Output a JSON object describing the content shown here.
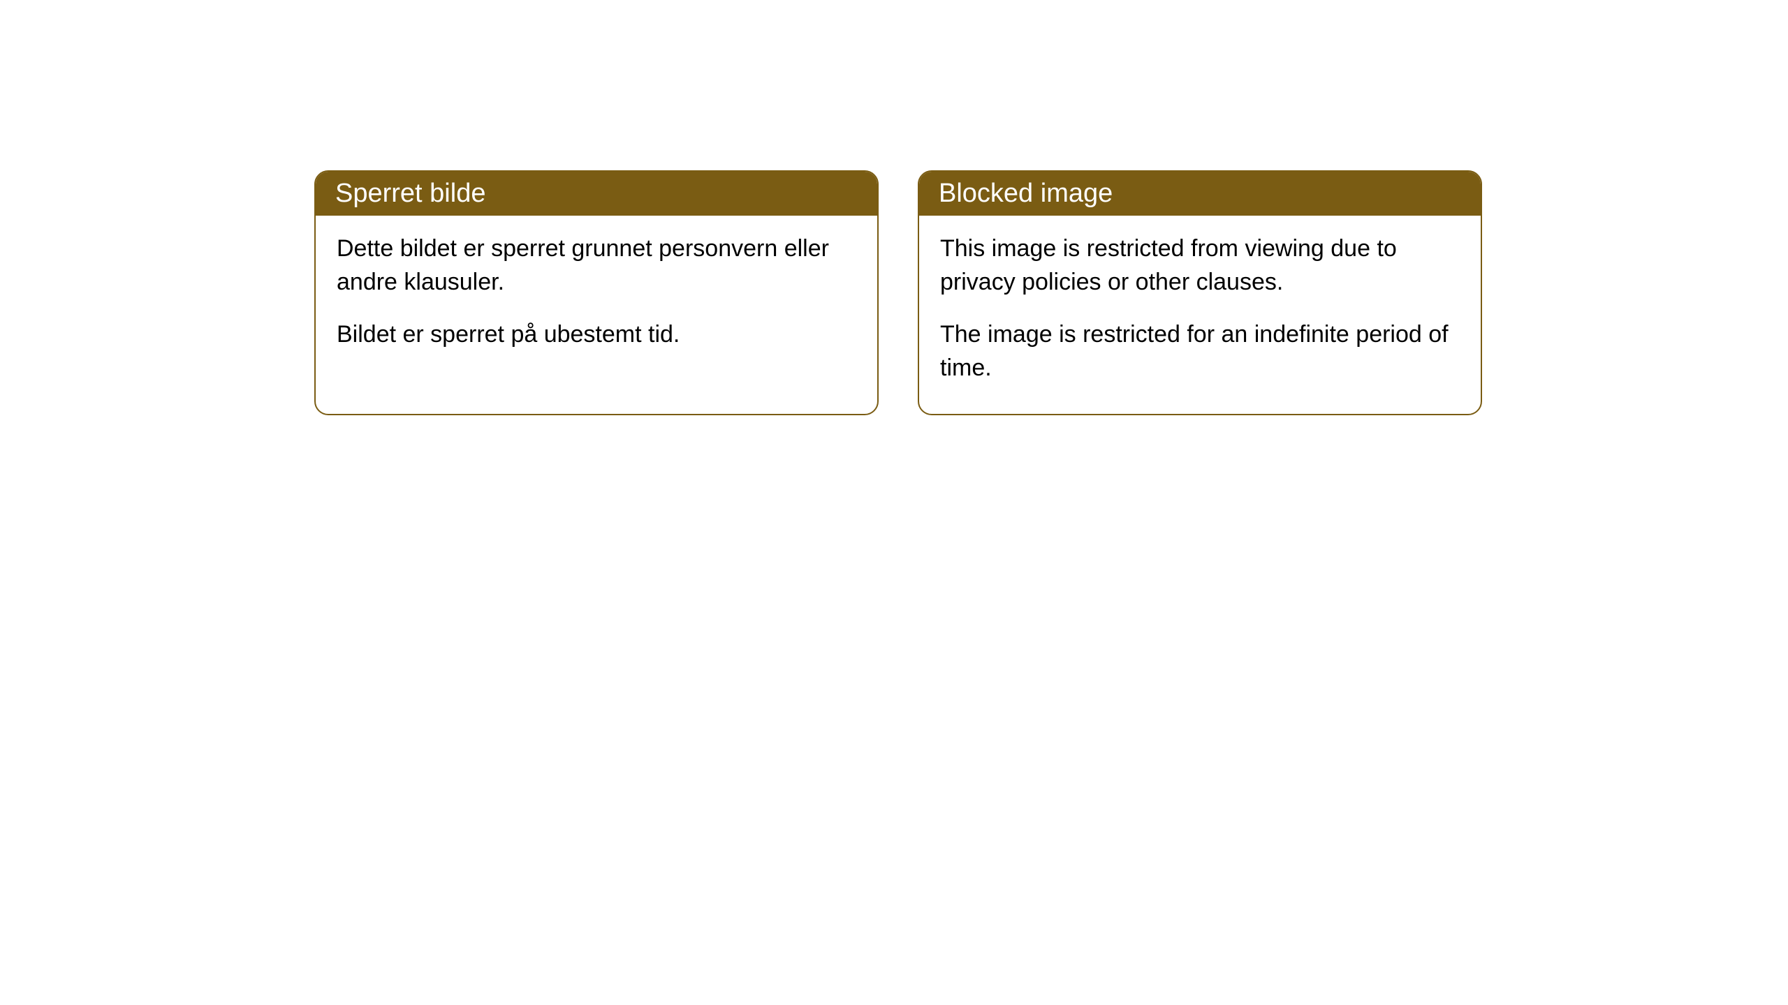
{
  "cards": [
    {
      "title": "Sperret bilde",
      "paragraph1": "Dette bildet er sperret grunnet personvern eller andre klausuler.",
      "paragraph2": "Bildet er sperret på ubestemt tid."
    },
    {
      "title": "Blocked image",
      "paragraph1": "This image is restricted from viewing due to privacy policies or other clauses.",
      "paragraph2": "The image is restricted for an indefinite period of time."
    }
  ],
  "style": {
    "header_background": "#7a5c13",
    "header_text_color": "#ffffff",
    "border_color": "#7a5c13",
    "body_background": "#ffffff",
    "body_text_color": "#000000",
    "border_radius": 20,
    "title_fontsize": 38,
    "body_fontsize": 34
  }
}
